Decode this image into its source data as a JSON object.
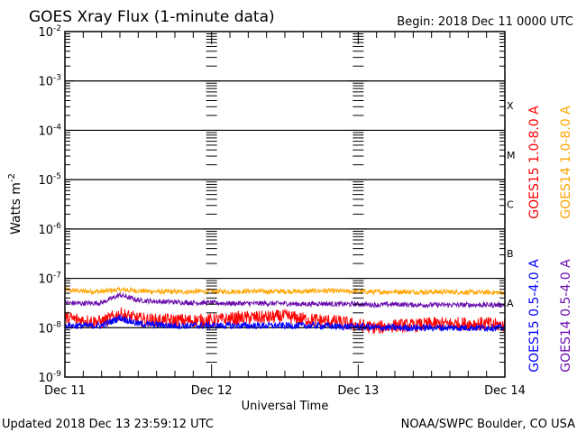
{
  "chart_data": {
    "type": "line",
    "title": "GOES Xray Flux (1-minute data)",
    "begin_label": "Begin:  2018 Dec 11 0000 UTC",
    "xlabel": "Universal Time",
    "ylabel": "Watts m",
    "ylabel_sup": "-2",
    "yscale": "log",
    "ylim": [
      1e-09,
      0.01
    ],
    "y_ticks": [
      {
        "exp": "-2",
        "value": 0.01
      },
      {
        "exp": "-3",
        "value": 0.001
      },
      {
        "exp": "-4",
        "value": 0.0001
      },
      {
        "exp": "-5",
        "value": 1e-05
      },
      {
        "exp": "-6",
        "value": 1e-06
      },
      {
        "exp": "-7",
        "value": 1e-07
      },
      {
        "exp": "-8",
        "value": 1e-08
      },
      {
        "exp": "-9",
        "value": 1e-09
      }
    ],
    "x_unit": "hours since 2018 Dec 11 0000 UTC",
    "xlim": [
      0,
      72
    ],
    "x_ticks": [
      {
        "label": "Dec 11",
        "value": 0
      },
      {
        "label": "Dec 12",
        "value": 24
      },
      {
        "label": "Dec 13",
        "value": 48
      },
      {
        "label": "Dec 14",
        "value": 72
      }
    ],
    "flare_classes": [
      {
        "label": "X",
        "value": 0.000316
      },
      {
        "label": "M",
        "value": 3.16e-05
      },
      {
        "label": "C",
        "value": 3.16e-06
      },
      {
        "label": "B",
        "value": 3.16e-07
      },
      {
        "label": "A",
        "value": 3.16e-08
      }
    ],
    "x": [
      0,
      3,
      6,
      9,
      12,
      15,
      18,
      21,
      24,
      27,
      30,
      33,
      36,
      39,
      42,
      45,
      48,
      51,
      54,
      57,
      60,
      63,
      66,
      69,
      72
    ],
    "series": [
      {
        "name": "GOES14 1.0-8.0 A",
        "color": "#ffa500",
        "values": [
          5.8e-08,
          5.5e-08,
          5.4e-08,
          5.9e-08,
          5.6e-08,
          5.4e-08,
          5.3e-08,
          5.4e-08,
          5.4e-08,
          5.4e-08,
          5.5e-08,
          5.4e-08,
          5.5e-08,
          5.4e-08,
          5.6e-08,
          5.5e-08,
          5.4e-08,
          5.3e-08,
          5.4e-08,
          5.3e-08,
          5.3e-08,
          5.3e-08,
          5.2e-08,
          5.2e-08,
          5.1e-08
        ]
      },
      {
        "name": "GOES14 0.5-4.0 A",
        "color": "#6a0dad",
        "values": [
          3.2e-08,
          3.1e-08,
          3.2e-08,
          4.6e-08,
          3.6e-08,
          3.4e-08,
          3.3e-08,
          3.2e-08,
          3.2e-08,
          3.1e-08,
          3.1e-08,
          3.1e-08,
          3.1e-08,
          3e-08,
          3.1e-08,
          3e-08,
          3e-08,
          2.9e-08,
          3e-08,
          2.9e-08,
          2.9e-08,
          2.9e-08,
          2.9e-08,
          2.9e-08,
          2.9e-08
        ]
      },
      {
        "name": "GOES15 1.0-8.0 A",
        "color": "#ff0000",
        "values": [
          1.6e-08,
          1.4e-08,
          1.3e-08,
          1.9e-08,
          1.5e-08,
          1.4e-08,
          1.4e-08,
          1.4e-08,
          1.4e-08,
          1.5e-08,
          1.6e-08,
          1.6e-08,
          1.7e-08,
          1.5e-08,
          1.4e-08,
          1.3e-08,
          1.1e-08,
          1e-08,
          1.1e-08,
          1.1e-08,
          1.2e-08,
          1.2e-08,
          1.2e-08,
          1.2e-08,
          1.1e-08
        ]
      },
      {
        "name": "GOES15 0.5-4.0 A",
        "color": "#0000ff",
        "values": [
          1.1e-08,
          1.1e-08,
          1.1e-08,
          1.6e-08,
          1.2e-08,
          1.15e-08,
          1.1e-08,
          1.1e-08,
          1.1e-08,
          1.1e-08,
          1.1e-08,
          1.1e-08,
          1.1e-08,
          1.1e-08,
          1.1e-08,
          1.05e-08,
          1.05e-08,
          1e-08,
          1e-08,
          1e-08,
          1e-08,
          1e-08,
          1e-08,
          1e-08,
          1e-08
        ]
      }
    ],
    "legend": [
      {
        "label": "GOES15 1.0-8.0 A",
        "color": "#ff0000"
      },
      {
        "label": "GOES14 1.0-8.0 A",
        "color": "#ffa500"
      },
      {
        "label": "GOES15 0.5-4.0 A",
        "color": "#0000ff"
      },
      {
        "label": "GOES14 0.5-4.0 A",
        "color": "#6a0dad"
      }
    ],
    "legend_placement": "right"
  },
  "footer": {
    "updated": "Updated 2018 Dec 13 23:59:12 UTC",
    "source": "NOAA/SWPC Boulder, CO USA"
  }
}
